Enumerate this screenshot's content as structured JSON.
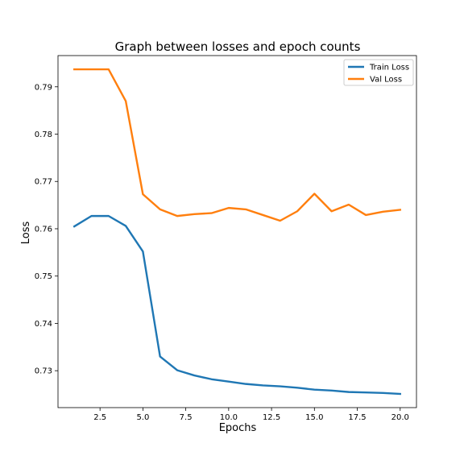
{
  "chart_data": {
    "type": "line",
    "title": "Graph between losses and epoch counts",
    "xlabel": "Epochs",
    "ylabel": "Loss",
    "xlim": [
      0.05,
      20.95
    ],
    "ylim": [
      0.7222,
      0.7966
    ],
    "xticks": [
      2.5,
      5.0,
      7.5,
      10.0,
      12.5,
      15.0,
      17.5,
      20.0
    ],
    "xtick_labels": [
      "2.5",
      "5.0",
      "7.5",
      "10.0",
      "12.5",
      "15.0",
      "17.5",
      "20.0"
    ],
    "yticks": [
      0.73,
      0.74,
      0.75,
      0.76,
      0.77,
      0.78,
      0.79
    ],
    "ytick_labels": [
      "0.73",
      "0.74",
      "0.75",
      "0.76",
      "0.77",
      "0.78",
      "0.79"
    ],
    "grid": false,
    "legend_position": "top-right",
    "x": [
      1,
      2,
      3,
      4,
      5,
      6,
      7,
      8,
      9,
      10,
      11,
      12,
      13,
      14,
      15,
      16,
      17,
      18,
      19,
      20
    ],
    "series": [
      {
        "name": "Train Loss",
        "color": "#1f77b4",
        "values": [
          0.7605,
          0.7627,
          0.7627,
          0.7606,
          0.7552,
          0.733,
          0.7301,
          0.729,
          0.7282,
          0.7277,
          0.7272,
          0.7269,
          0.7267,
          0.7264,
          0.726,
          0.7258,
          0.7255,
          0.7254,
          0.7253,
          0.7251
        ]
      },
      {
        "name": "Val Loss",
        "color": "#ff7f0e",
        "values": [
          0.7937,
          0.7937,
          0.7937,
          0.787,
          0.7673,
          0.7641,
          0.7627,
          0.7631,
          0.7633,
          0.7644,
          0.7641,
          0.7629,
          0.7617,
          0.7637,
          0.7674,
          0.7637,
          0.7651,
          0.7629,
          0.7636,
          0.764
        ]
      }
    ]
  }
}
